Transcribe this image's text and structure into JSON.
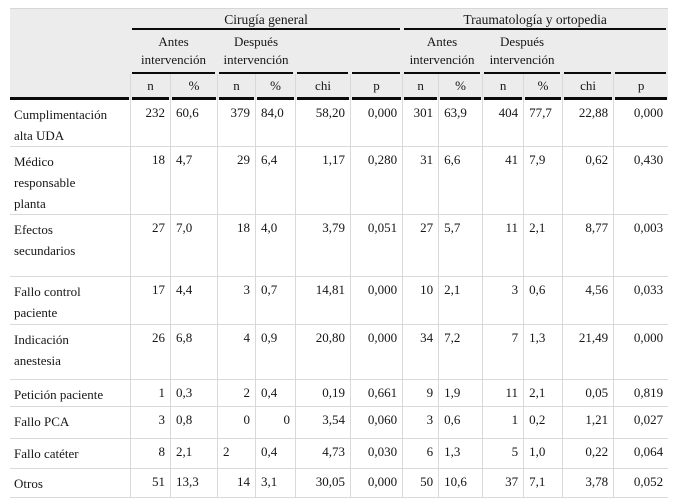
{
  "table": {
    "groups": [
      {
        "title": "Cirugía general"
      },
      {
        "title": "Traumatología y ortopedia"
      }
    ],
    "subgroups": [
      "Antes intervención",
      "Después intervención"
    ],
    "col_headers": [
      "n",
      "%",
      "chi",
      "p"
    ],
    "rows": [
      {
        "label_lines": [
          "Cumplimentación",
          "alta UDA"
        ],
        "cells": [
          "232",
          "60,6",
          "379",
          "84,0",
          "58,20",
          "0,000",
          "301",
          "63,9",
          "404",
          "77,7",
          "22,88",
          "0,000"
        ]
      },
      {
        "label_lines": [
          "Médico",
          "responsable",
          "planta"
        ],
        "cells": [
          "18",
          "4,7",
          "29",
          "6,4",
          "1,17",
          "0,280",
          "31",
          "6,6",
          "41",
          "7,9",
          "0,62",
          "0,430"
        ]
      },
      {
        "label_lines": [
          "Efectos",
          "secundarios"
        ],
        "cells": [
          "27",
          "7,0",
          "18",
          "4,0",
          "3,79",
          "0,051",
          "27",
          "5,7",
          "11",
          "2,1",
          "8,77",
          "0,003"
        ]
      },
      {
        "label_lines": [
          "Fallo control",
          "paciente"
        ],
        "cells": [
          "17",
          "4,4",
          "3",
          "0,7",
          "14,81",
          "0,000",
          "10",
          "2,1",
          "3",
          "0,6",
          "4,56",
          "0,033"
        ]
      },
      {
        "label_lines": [
          "Indicación",
          "anestesia"
        ],
        "cells": [
          "26",
          "6,8",
          "4",
          "0,9",
          "20,80",
          "0,000",
          "34",
          "7,2",
          "7",
          "1,3",
          "21,49",
          "0,000"
        ]
      },
      {
        "label_lines": [
          "Petición paciente"
        ],
        "cells": [
          "1",
          "0,3",
          "2",
          "0,4",
          "0,19",
          "0,661",
          "9",
          "1,9",
          "11",
          "2,1",
          "0,05",
          "0,819"
        ]
      },
      {
        "label_lines": [
          "Fallo PCA"
        ],
        "cells": [
          "3",
          "0,8",
          "0",
          "0",
          "3,54",
          "0,060",
          "3",
          "0,6",
          "1",
          "0,2",
          "1,21",
          "0,027"
        ],
        "align_overrides": {
          "3": "r"
        }
      },
      {
        "label_lines": [
          "Fallo catéter"
        ],
        "cells": [
          "8",
          "2,1",
          "2",
          "0,4",
          "4,73",
          "0,030",
          "6",
          "1,3",
          "5",
          "1,0",
          "0,22",
          "0,064"
        ],
        "align_overrides": {
          "2": "l"
        }
      },
      {
        "label_lines": [
          "Otros"
        ],
        "cells": [
          "51",
          "13,3",
          "14",
          "3,1",
          "30,05",
          "0,000",
          "50",
          "10,6",
          "37",
          "7,1",
          "3,78",
          "0,052"
        ]
      }
    ]
  },
  "colors": {
    "header_bg": "#ececec",
    "grid": "#d9d9d9",
    "rule": "#0a0a0a"
  }
}
